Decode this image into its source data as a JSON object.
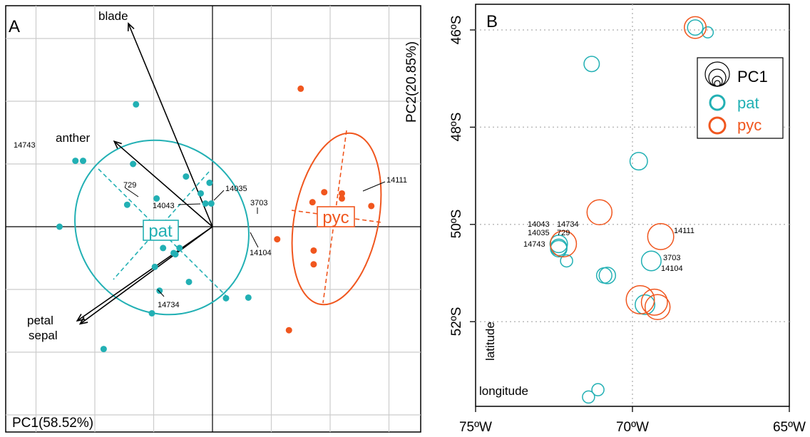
{
  "colors": {
    "pat": "#22b0b4",
    "pyc": "#f0561e",
    "axis": "#000000",
    "grid": "#cccccc"
  },
  "chart_data": [
    {
      "panel": "A",
      "type": "scatter",
      "subtype": "pca-biplot",
      "xlabel": "PC1(58.52%)",
      "ylabel": "PC2(20.85%)",
      "xlim": [
        -3.0,
        3.0
      ],
      "ylim": [
        -3.2,
        3.5
      ],
      "grid": true,
      "series": [
        {
          "name": "pat",
          "color": "#22b0b4",
          "points": [
            [
              -2.33,
              1.05
            ],
            [
              -2.2,
              1.05
            ],
            [
              -1.3,
              1.95
            ],
            [
              -1.35,
              1.0
            ],
            [
              -0.45,
              0.8
            ],
            [
              -2.6,
              0.0
            ],
            [
              -1.45,
              0.35
            ],
            [
              -0.95,
              0.45
            ],
            [
              -0.2,
              0.53
            ],
            [
              -0.12,
              0.37
            ],
            [
              -0.02,
              0.37
            ],
            [
              -0.05,
              0.7
            ],
            [
              -0.56,
              -0.34
            ],
            [
              -0.84,
              -0.34
            ],
            [
              -0.66,
              -0.42
            ],
            [
              -0.63,
              -0.44
            ],
            [
              -0.98,
              -0.64
            ],
            [
              -0.4,
              -0.88
            ],
            [
              -0.9,
              -1.02
            ],
            [
              -1.03,
              -1.38
            ],
            [
              0.23,
              -1.14
            ],
            [
              0.61,
              -1.13
            ],
            [
              -1.85,
              -1.95
            ]
          ]
        },
        {
          "name": "pyc",
          "color": "#f0561e",
          "points": [
            [
              1.5,
              2.2
            ],
            [
              1.9,
              0.55
            ],
            [
              2.2,
              0.53
            ],
            [
              2.2,
              0.45
            ],
            [
              1.7,
              0.39
            ],
            [
              2.7,
              0.33
            ],
            [
              1.1,
              -0.2
            ],
            [
              1.72,
              -0.38
            ],
            [
              1.72,
              -0.6
            ],
            [
              1.3,
              -1.65
            ]
          ]
        }
      ],
      "point_labels": [
        "14743",
        "729",
        "14043",
        "14035",
        "3703",
        "14104",
        "14734",
        "14111"
      ],
      "group_labels": [
        "pat",
        "pyc"
      ],
      "loadings": [
        {
          "name": "blade",
          "x": -1.43,
          "y": 3.24
        },
        {
          "name": "anther",
          "x": -1.67,
          "y": 1.36
        },
        {
          "name": "petal",
          "x": -2.25,
          "y": -1.55
        },
        {
          "name": "sepal",
          "x": -2.3,
          "y": -1.5
        }
      ]
    },
    {
      "panel": "B",
      "type": "scatter",
      "subtype": "bubble-map",
      "xlabel": "longitude",
      "ylabel": "latitude",
      "x_ticks": [
        "75ºW",
        "70ºW",
        "65ºW"
      ],
      "y_ticks": [
        "46ºS",
        "48ºS",
        "50ºS",
        "52ºS"
      ],
      "xlim": [
        -75,
        -65
      ],
      "ylim": [
        -54,
        -45.6
      ],
      "grid": true,
      "legend": {
        "position": "top-right",
        "title": "PC1",
        "entries": [
          "pat",
          "pyc"
        ]
      },
      "series": [
        {
          "name": "pat",
          "color": "#22b0b4",
          "points": [
            [
              -68.0,
              -45.95,
              0.9
            ],
            [
              -67.6,
              -46.05,
              0.5
            ],
            [
              -71.3,
              -46.7,
              0.9
            ],
            [
              -69.8,
              -48.7,
              1.1
            ],
            [
              -72.35,
              -50.4,
              1.1
            ],
            [
              -72.35,
              -50.5,
              1.0
            ],
            [
              -72.35,
              -50.47,
              1.0
            ],
            [
              -72.1,
              -50.75,
              0.6
            ],
            [
              -69.4,
              -50.75,
              1.3
            ],
            [
              -70.8,
              -51.05,
              1.0
            ],
            [
              -70.9,
              -51.05,
              0.9
            ],
            [
              -69.6,
              -51.65,
              1.3
            ],
            [
              -71.1,
              -53.4,
              0.6
            ],
            [
              -71.4,
              -53.55,
              0.6
            ]
          ]
        },
        {
          "name": "pyc",
          "color": "#f0561e",
          "points": [
            [
              -68.0,
              -45.95,
              1.5
            ],
            [
              -71.05,
              -49.75,
              1.8
            ],
            [
              -69.1,
              -50.25,
              1.9
            ],
            [
              -72.2,
              -50.4,
              1.9
            ],
            [
              -69.75,
              -51.55,
              2.1
            ],
            [
              -69.3,
              -51.6,
              1.9
            ],
            [
              -69.2,
              -51.7,
              1.8
            ]
          ]
        }
      ],
      "point_labels": [
        "14043",
        "14734",
        "14035",
        "729",
        "14743",
        "14111",
        "3703",
        "14104"
      ]
    }
  ],
  "panel_a": {
    "letter": "A",
    "xlabel": "PC1(58.52%)",
    "ylabel": "PC2(20.85%)",
    "group_pat": "pat",
    "group_pyc": "pyc",
    "loadings": {
      "blade": "blade",
      "anther": "anther",
      "petal": "petal",
      "sepal": "sepal"
    },
    "labels": {
      "l14743": "14743",
      "l729": "729",
      "l14043": "14043",
      "l14035": "14035",
      "l3703": "3703",
      "l14104": "14104",
      "l14734": "14734",
      "l14111": "14111"
    }
  },
  "panel_b": {
    "letter": "B",
    "xlabel": "longitude",
    "ylabel": "latitude",
    "xticks": [
      "75ºW",
      "70ºW",
      "65ºW"
    ],
    "yticks": [
      "46ºS",
      "48ºS",
      "50ºS",
      "52ºS"
    ],
    "legend": {
      "title": "PC1",
      "pat": "pat",
      "pyc": "pyc"
    },
    "labels": {
      "l14043": "14043",
      "l14734": "14734",
      "l14035": "14035",
      "l729": "729",
      "l14743": "14743",
      "l14111": "14111",
      "l3703": "3703",
      "l14104": "14104"
    }
  }
}
